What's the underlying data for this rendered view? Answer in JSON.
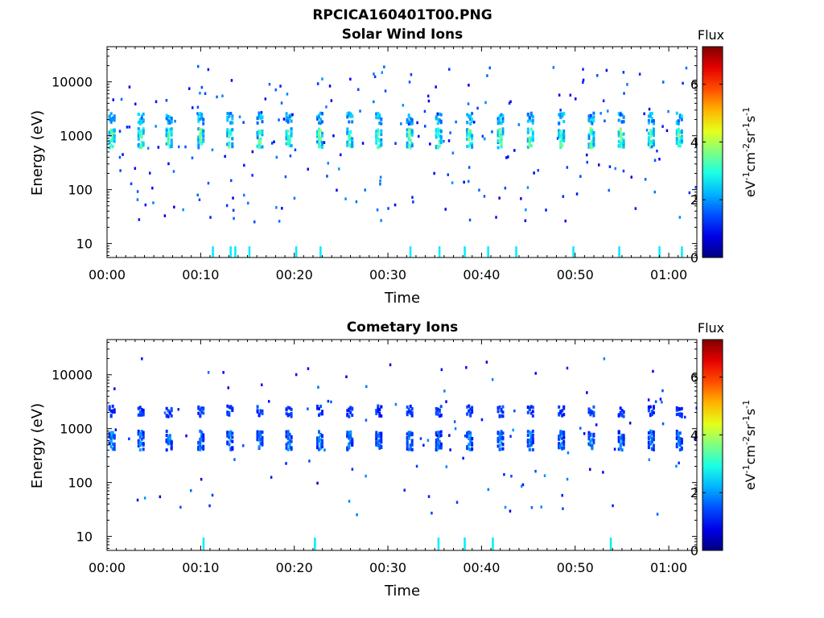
{
  "figure_title": "RPCICA160401T00.PNG",
  "chart_data": [
    {
      "type": "heatmap",
      "title": "Solar Wind Ions",
      "xlabel": "Time",
      "ylabel": "Energy (eV)",
      "x_ticks": [
        "00:00",
        "00:10",
        "00:20",
        "00:30",
        "00:40",
        "00:50",
        "01:00"
      ],
      "x_range_minutes": [
        0,
        63
      ],
      "y_scale": "log",
      "y_ticks": [
        "10",
        "100",
        "1000",
        "10000"
      ],
      "y_range": [
        5.5,
        45000
      ],
      "colorbar": {
        "title": "Flux",
        "label": "eV^-1cm^-2sr^-1s^-1",
        "range": [
          0,
          7.3
        ],
        "ticks": [
          "0",
          "2",
          "4",
          "6"
        ]
      },
      "sweep_times_min": [
        0.4,
        3.5,
        6.5,
        9.9,
        13.0,
        16.2,
        19.3,
        22.6,
        25.8,
        28.9,
        32.2,
        35.3,
        38.6,
        41.9,
        45.1,
        48.4,
        51.6,
        54.8,
        58.0,
        61.0
      ],
      "peak_energy_eV": [
        850,
        2100
      ],
      "peak_flux": 4.5,
      "low_energy_streaks_min": [
        11.2,
        13.1,
        13.6,
        15.1,
        20.1,
        22.7,
        32.3,
        35.4,
        38.1,
        40.6,
        43.6,
        49.7,
        54.6,
        58.9,
        61.3
      ],
      "low_energy_streak_eV": 6.5
    },
    {
      "type": "heatmap",
      "title": "Cometary Ions",
      "xlabel": "Time",
      "ylabel": "Energy (eV)",
      "x_ticks": [
        "00:00",
        "00:10",
        "00:20",
        "00:30",
        "00:40",
        "00:50",
        "01:00"
      ],
      "x_range_minutes": [
        0,
        63
      ],
      "y_scale": "log",
      "y_ticks": [
        "10",
        "100",
        "1000",
        "10000"
      ],
      "y_range": [
        5.5,
        45000
      ],
      "colorbar": {
        "title": "Flux",
        "label": "eV^-1cm^-2sr^-1s^-1",
        "range": [
          0,
          7.3
        ],
        "ticks": [
          "0",
          "2",
          "4",
          "6"
        ]
      },
      "sweep_times_min": [
        0.4,
        3.5,
        6.5,
        9.9,
        13.0,
        16.2,
        19.3,
        22.6,
        25.8,
        28.9,
        32.2,
        35.3,
        38.6,
        41.9,
        45.1,
        48.4,
        51.6,
        54.8,
        58.0,
        61.0
      ],
      "peak_energy_eV": [
        550,
        2100
      ],
      "peak_flux": 2.5,
      "low_energy_streaks_min": [
        10.2,
        22.1,
        35.3,
        38.1,
        41.1,
        53.7
      ],
      "low_energy_streak_eV": 7
    }
  ]
}
